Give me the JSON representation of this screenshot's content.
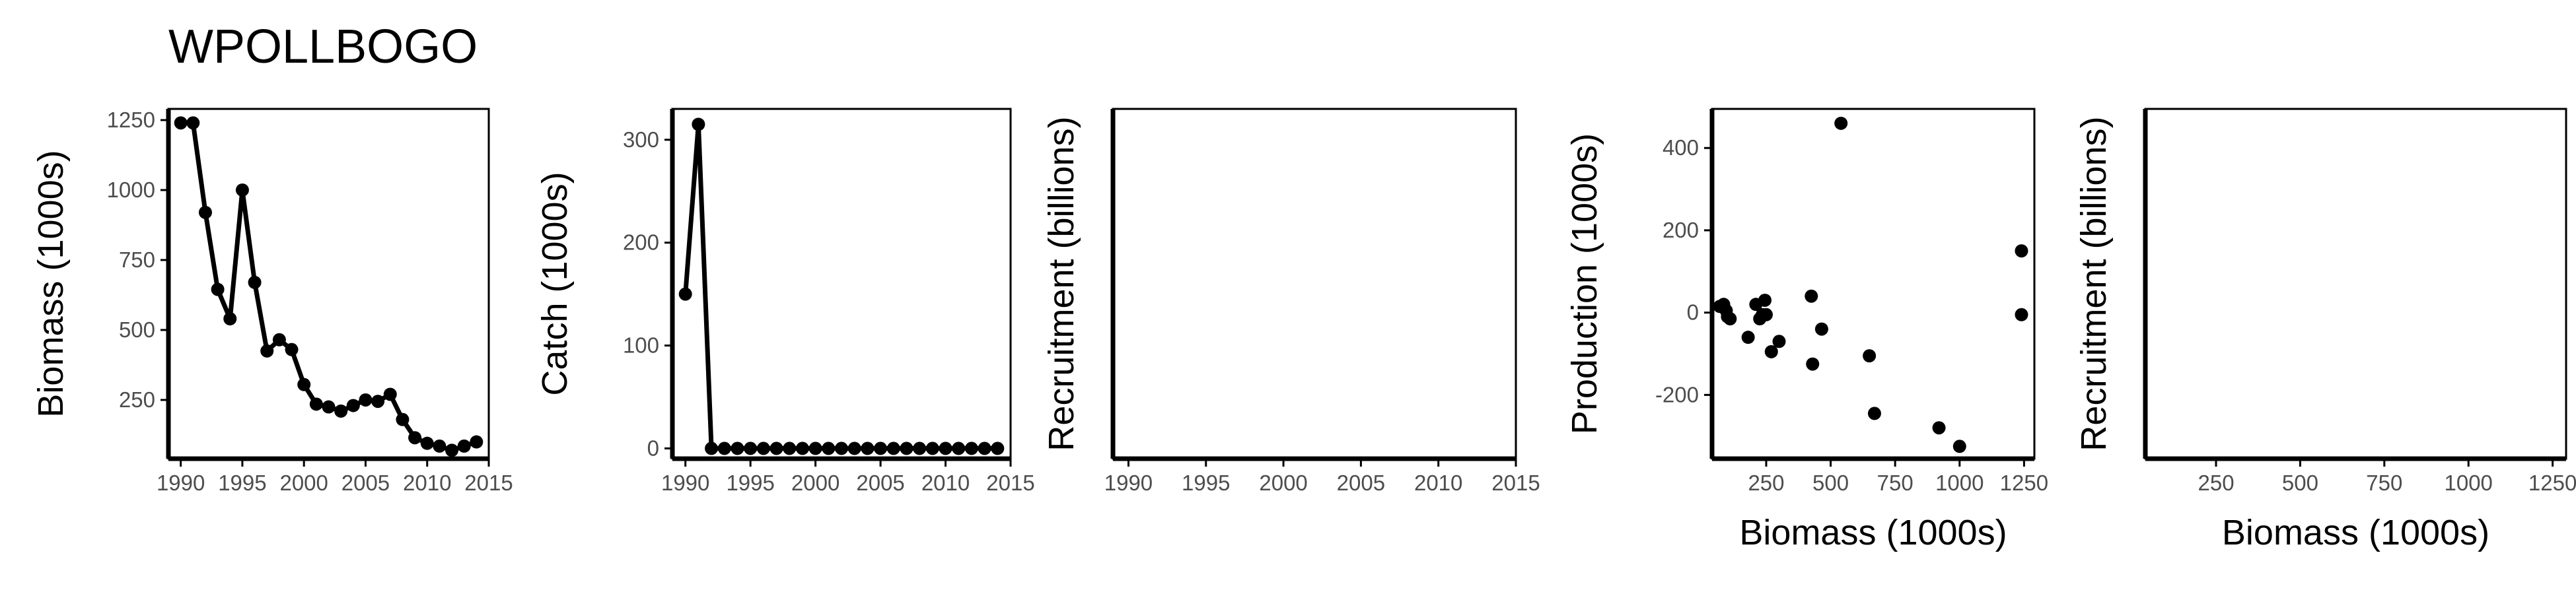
{
  "title": "WPOLLBOGO",
  "chart_data": [
    {
      "id": "biomass",
      "type": "line",
      "title": "",
      "xlabel": "",
      "ylabel": "Biomass (1000s)",
      "xlim": [
        1989,
        2015
      ],
      "ylim": [
        40,
        1290
      ],
      "xticks": [
        1990,
        1995,
        2000,
        2005,
        2010,
        2015
      ],
      "yticks": [
        250,
        500,
        750,
        1000,
        1250
      ],
      "x": [
        1990,
        1991,
        1992,
        1993,
        1994,
        1995,
        1996,
        1997,
        1998,
        1999,
        2000,
        2001,
        2002,
        2003,
        2004,
        2005,
        2006,
        2007,
        2008,
        2009,
        2010,
        2011,
        2012,
        2013,
        2014
      ],
      "values": [
        1240,
        1240,
        920,
        645,
        540,
        1000,
        670,
        425,
        465,
        430,
        305,
        235,
        225,
        210,
        230,
        250,
        245,
        270,
        180,
        115,
        95,
        85,
        70,
        85,
        100
      ],
      "markers": true
    },
    {
      "id": "catch",
      "type": "line",
      "title": "",
      "xlabel": "",
      "ylabel": "Catch (1000s)",
      "xlim": [
        1989,
        2015
      ],
      "ylim": [
        -10,
        330
      ],
      "xticks": [
        1990,
        1995,
        2000,
        2005,
        2010,
        2015
      ],
      "yticks": [
        0,
        100,
        200,
        300
      ],
      "x": [
        1990,
        1991,
        1992,
        1993,
        1994,
        1995,
        1996,
        1997,
        1998,
        1999,
        2000,
        2001,
        2002,
        2003,
        2004,
        2005,
        2006,
        2007,
        2008,
        2009,
        2010,
        2011,
        2012,
        2013,
        2014
      ],
      "values": [
        150,
        315,
        0,
        0,
        0,
        0,
        0,
        0,
        0,
        0,
        0,
        0,
        0,
        0,
        0,
        0,
        0,
        0,
        0,
        0,
        0,
        0,
        0,
        0,
        0
      ],
      "markers": true
    },
    {
      "id": "recruitment-time",
      "type": "line",
      "title": "",
      "xlabel": "",
      "ylabel": "Recruitment (billions)",
      "xlim": [
        1989,
        2015
      ],
      "ylim": [
        0,
        1
      ],
      "xticks": [
        1990,
        1995,
        2000,
        2005,
        2010,
        2015
      ],
      "yticks": [],
      "x": [],
      "values": []
    },
    {
      "id": "production-biomass",
      "type": "scatter",
      "title": "",
      "xlabel": "Biomass (1000s)",
      "ylabel": "Production (1000s)",
      "xlim": [
        40,
        1290
      ],
      "ylim": [
        -355,
        495
      ],
      "xticks": [
        250,
        500,
        750,
        1000,
        1250
      ],
      "yticks": [
        -200,
        0,
        200,
        400
      ],
      "points": [
        [
          70,
          15
        ],
        [
          85,
          20
        ],
        [
          95,
          5
        ],
        [
          100,
          -10
        ],
        [
          110,
          -15
        ],
        [
          180,
          -60
        ],
        [
          210,
          20
        ],
        [
          225,
          -15
        ],
        [
          235,
          -5
        ],
        [
          245,
          30
        ],
        [
          250,
          -5
        ],
        [
          270,
          -95
        ],
        [
          300,
          -70
        ],
        [
          425,
          40
        ],
        [
          430,
          -125
        ],
        [
          465,
          -40
        ],
        [
          540,
          460
        ],
        [
          650,
          -105
        ],
        [
          670,
          -245
        ],
        [
          920,
          -280
        ],
        [
          1000,
          -325
        ],
        [
          1240,
          150
        ],
        [
          1240,
          -5
        ]
      ]
    },
    {
      "id": "recruitment-biomass",
      "type": "scatter",
      "title": "",
      "xlabel": "Biomass (1000s)",
      "ylabel": "Recruitment (billions)",
      "xlim": [
        40,
        1290
      ],
      "ylim": [
        0,
        1
      ],
      "xticks": [
        250,
        500,
        750,
        1000,
        1250
      ],
      "yticks": [],
      "points": []
    }
  ]
}
